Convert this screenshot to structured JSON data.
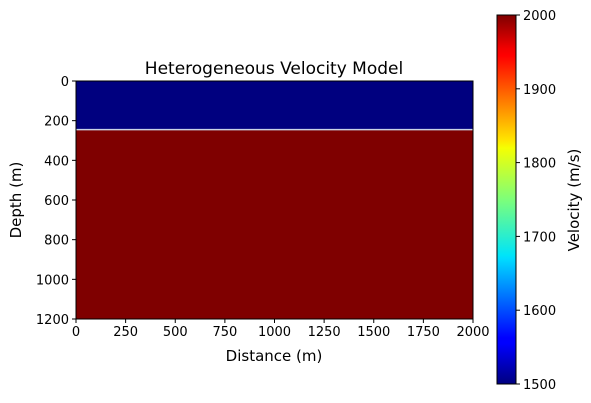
{
  "chart_data": {
    "type": "heatmap",
    "title": "Heterogeneous Velocity Model",
    "xlabel": "Distance (m)",
    "ylabel": "Depth (m)",
    "xlim": [
      0,
      2000
    ],
    "ylim": [
      1200,
      0
    ],
    "xticks": [
      0,
      250,
      500,
      750,
      1000,
      1250,
      1500,
      1750,
      2000
    ],
    "yticks": [
      0,
      200,
      400,
      600,
      800,
      1000,
      1200
    ],
    "colormap": "jet",
    "layers": [
      {
        "depth_top": 0,
        "depth_bottom": 245,
        "velocity": 1500
      },
      {
        "depth_top": 245,
        "depth_bottom": 1200,
        "velocity": 2000
      }
    ],
    "interface_depth": 245,
    "colorbar": {
      "label": "Velocity (m/s)",
      "range": [
        1500,
        2000
      ],
      "ticks": [
        1500,
        1600,
        1700,
        1800,
        1900,
        2000
      ]
    },
    "colors": {
      "low": "#00007f",
      "high": "#7f0000",
      "interface": "#c8d2e6"
    }
  }
}
